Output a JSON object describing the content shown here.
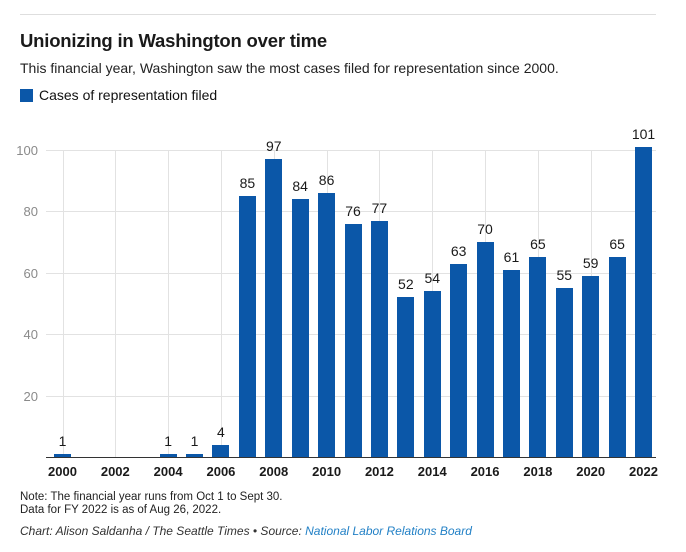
{
  "header": {
    "title": "Unionizing in Washington over time",
    "subtitle": "This financial year, Washington saw the most cases filed for representation since 2000.",
    "legend": {
      "label": "Cases of representation filed",
      "color": "#0b57a8"
    }
  },
  "chart_data": {
    "type": "bar",
    "title": "Unionizing in Washington over time",
    "subtitle": "This financial year, Washington saw the most cases filed for representation since 2000.",
    "series_name": "Cases of representation filed",
    "categories": [
      2000,
      2001,
      2002,
      2003,
      2004,
      2005,
      2006,
      2007,
      2008,
      2009,
      2010,
      2011,
      2012,
      2013,
      2014,
      2015,
      2016,
      2017,
      2018,
      2019,
      2020,
      2021,
      2022
    ],
    "values": [
      1,
      0,
      0,
      0,
      1,
      1,
      4,
      85,
      97,
      84,
      86,
      76,
      77,
      52,
      54,
      63,
      70,
      61,
      65,
      55,
      59,
      65,
      101
    ],
    "xticks": [
      2000,
      2002,
      2004,
      2006,
      2008,
      2010,
      2012,
      2014,
      2016,
      2018,
      2020,
      2022
    ],
    "yticks": [
      20,
      40,
      60,
      80,
      100
    ],
    "ylim": [
      0,
      105
    ],
    "xlabel": "",
    "ylabel": "",
    "grid": true,
    "value_labels": true,
    "bar_color": "#0b57a8",
    "tick_color": "#8a8a8a",
    "grid_color": "#e2e2e2",
    "legend_position": "top-left"
  },
  "footer": {
    "note_line1": "Note: The financial year runs from Oct 1 to Sept 30.",
    "note_line2": "Data for FY 2022 is as of Aug 26, 2022.",
    "byline": "Chart: Alison Saldanha / The Seattle Times • Source: ",
    "source_link": "National Labor Relations Board"
  }
}
